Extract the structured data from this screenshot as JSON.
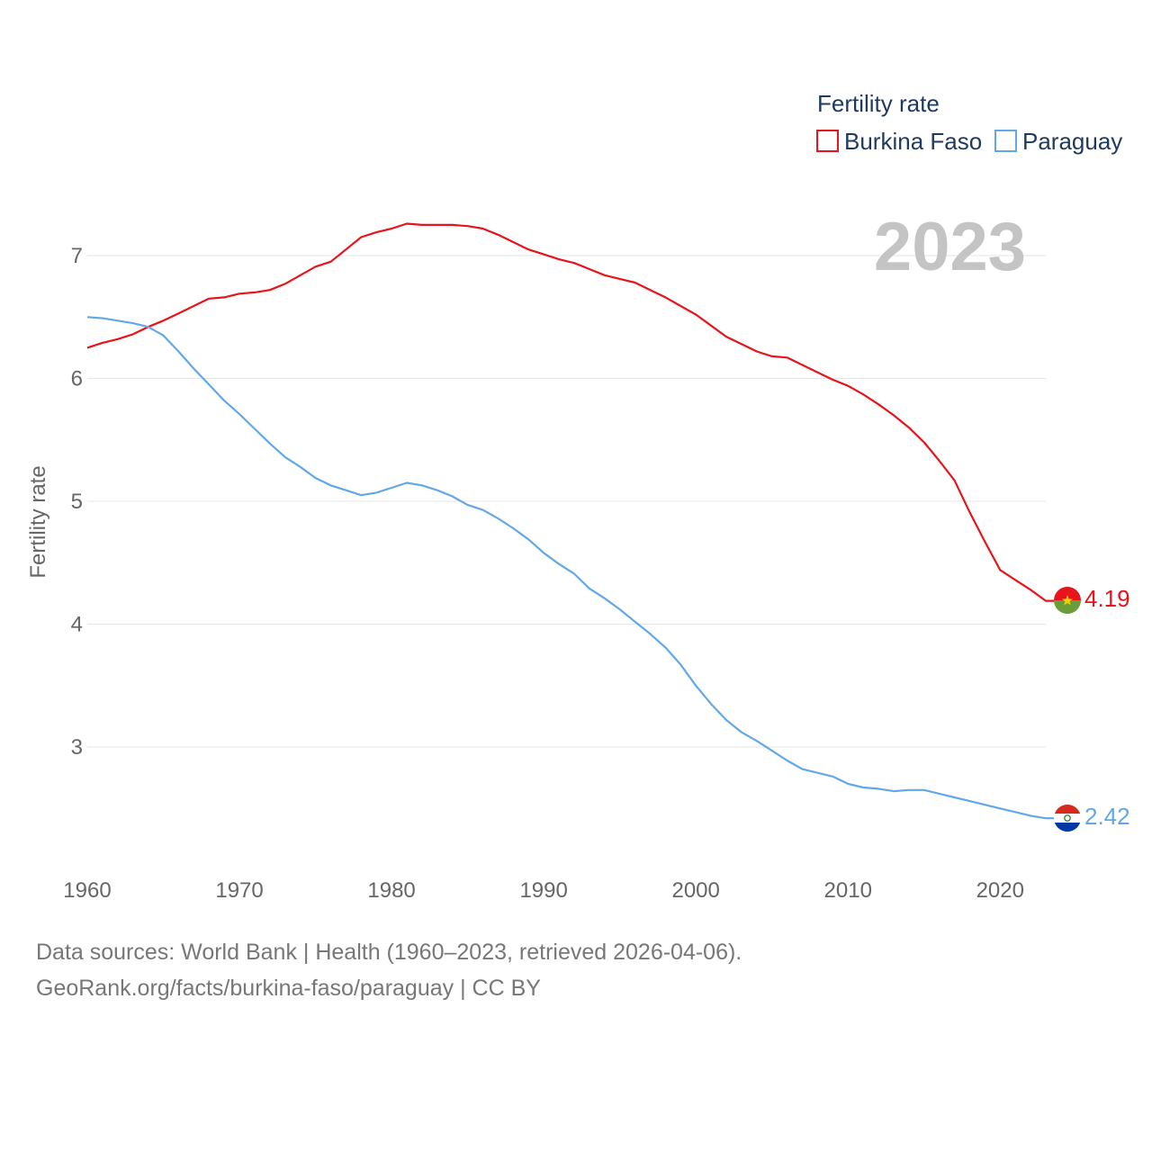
{
  "legend": {
    "title": "Fertility rate"
  },
  "year_label": "2023",
  "source": {
    "line1": "Data sources: World Bank | Health (1960–2023, retrieved 2026-04-06).",
    "line2": "GeoRank.org/facts/burkina-faso/paraguay | CC BY"
  },
  "chart_data": {
    "type": "line",
    "title": "Fertility rate",
    "ylabel": "Fertility rate",
    "xlabel": "",
    "xlim": [
      1960,
      2023
    ],
    "ylim": [
      2.2,
      7.5
    ],
    "x_ticks": [
      1960,
      1970,
      1980,
      1990,
      2000,
      2010,
      2020
    ],
    "y_ticks": [
      3,
      4,
      5,
      6,
      7
    ],
    "grid": true,
    "legend_position": "top-right",
    "x": [
      1960,
      1961,
      1962,
      1963,
      1964,
      1965,
      1966,
      1967,
      1968,
      1969,
      1970,
      1971,
      1972,
      1973,
      1974,
      1975,
      1976,
      1977,
      1978,
      1979,
      1980,
      1981,
      1982,
      1983,
      1984,
      1985,
      1986,
      1987,
      1988,
      1989,
      1990,
      1991,
      1992,
      1993,
      1994,
      1995,
      1996,
      1997,
      1998,
      1999,
      2000,
      2001,
      2002,
      2003,
      2004,
      2005,
      2006,
      2007,
      2008,
      2009,
      2010,
      2011,
      2012,
      2013,
      2014,
      2015,
      2016,
      2017,
      2018,
      2019,
      2020,
      2021,
      2022,
      2023
    ],
    "series": [
      {
        "name": "Burkina Faso",
        "color": "#e8141b",
        "end_label": "4.19",
        "flag": "burkina-faso-flag-icon",
        "values": [
          6.25,
          6.29,
          6.32,
          6.36,
          6.42,
          6.47,
          6.53,
          6.59,
          6.65,
          6.66,
          6.69,
          6.7,
          6.72,
          6.77,
          6.84,
          6.91,
          6.95,
          7.05,
          7.15,
          7.19,
          7.22,
          7.26,
          7.25,
          7.25,
          7.25,
          7.24,
          7.22,
          7.17,
          7.11,
          7.05,
          7.01,
          6.97,
          6.94,
          6.89,
          6.84,
          6.81,
          6.78,
          6.72,
          6.66,
          6.59,
          6.52,
          6.43,
          6.34,
          6.28,
          6.22,
          6.18,
          6.17,
          6.11,
          6.05,
          5.99,
          5.94,
          5.87,
          5.79,
          5.7,
          5.6,
          5.48,
          5.33,
          5.17,
          4.91,
          4.67,
          4.44,
          4.36,
          4.28,
          4.19
        ]
      },
      {
        "name": "Paraguay",
        "color": "#62a8e8",
        "end_label": "2.42",
        "flag": "paraguay-flag-icon",
        "values": [
          6.5,
          6.49,
          6.47,
          6.45,
          6.42,
          6.35,
          6.22,
          6.08,
          5.95,
          5.82,
          5.71,
          5.59,
          5.47,
          5.36,
          5.28,
          5.19,
          5.13,
          5.09,
          5.05,
          5.07,
          5.11,
          5.15,
          5.13,
          5.09,
          5.04,
          4.97,
          4.93,
          4.86,
          4.78,
          4.69,
          4.58,
          4.49,
          4.41,
          4.29,
          4.21,
          4.12,
          4.02,
          3.92,
          3.81,
          3.67,
          3.5,
          3.35,
          3.22,
          3.12,
          3.05,
          2.97,
          2.89,
          2.82,
          2.79,
          2.76,
          2.7,
          2.67,
          2.66,
          2.64,
          2.65,
          2.65,
          2.62,
          2.59,
          2.56,
          2.53,
          2.5,
          2.47,
          2.44,
          2.42
        ]
      }
    ]
  }
}
